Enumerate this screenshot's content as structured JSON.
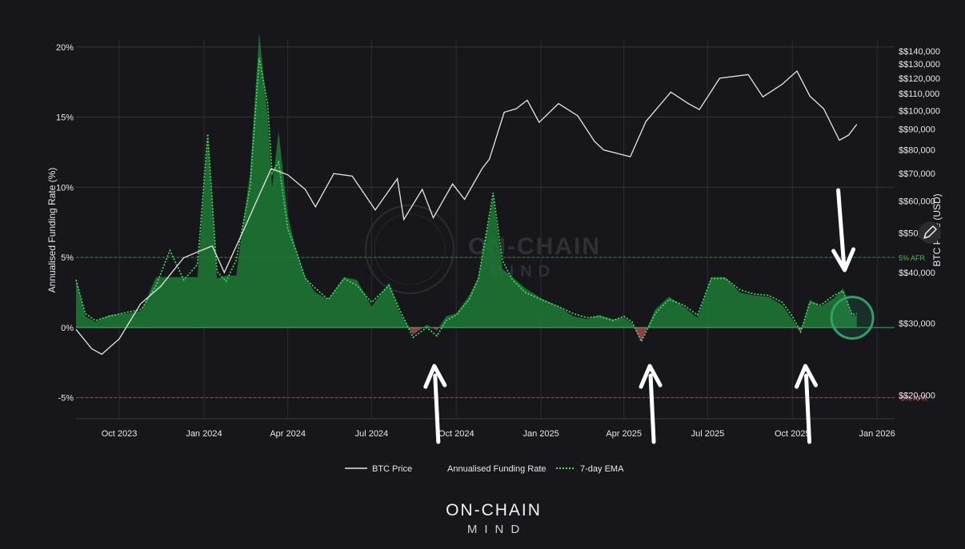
{
  "chart_data": {
    "type": "area",
    "ylabel_left": "Annualised Funding Rate (%)",
    "ylabel_right": "BTC Price (USD)",
    "x_ticks": [
      "Oct 2023",
      "Jan 2024",
      "Apr 2024",
      "Jul 2024",
      "Oct 2024",
      "Jan 2025",
      "Apr 2025",
      "Jul 2025",
      "Oct 2025",
      "Jan 2026"
    ],
    "xlim": [
      "2023-08-15",
      "2026-01-20"
    ],
    "ylim_left": [
      -6.5,
      20.5
    ],
    "left_ticks": [
      "-5%",
      "0%",
      "5%",
      "10%",
      "15%",
      "20%"
    ],
    "right_scale": "log",
    "ylim_right": [
      17500,
      149000
    ],
    "right_ticks": [
      "$$20,000",
      "$$30,000",
      "$$40,000",
      "$$50,000",
      "$$60,000",
      "$$70,000",
      "$$80,000",
      "$$90,000",
      "$$100,000",
      "$$110,000",
      "$$120,000",
      "$$130,000",
      "$$140,000"
    ],
    "reference_lines": [
      {
        "label": "5% AFR",
        "value": 5,
        "color": "#3fbf5f"
      },
      {
        "label": "-5% AFR",
        "value": -5,
        "color": "#e06070"
      }
    ],
    "grid": true,
    "legend_position": "bottom-center",
    "legend": [
      {
        "name": "BTC Price",
        "style": "solid",
        "color": "#e6e6e6"
      },
      {
        "name": "Annualised Funding Rate",
        "style": "area",
        "color": "#1d7a34"
      },
      {
        "name": "7-day EMA",
        "style": "dotted",
        "color": "#3fe56b"
      }
    ],
    "series": [
      {
        "name": "BTC Price",
        "axis": "right",
        "color": "#e6e6e6",
        "x": [
          "2023-08-15",
          "2023-09-01",
          "2023-09-12",
          "2023-10-01",
          "2023-10-24",
          "2023-11-15",
          "2023-12-10",
          "2024-01-10",
          "2024-01-23",
          "2024-02-15",
          "2024-03-01",
          "2024-03-14",
          "2024-04-01",
          "2024-04-20",
          "2024-05-01",
          "2024-05-21",
          "2024-06-10",
          "2024-07-05",
          "2024-07-29",
          "2024-08-05",
          "2024-08-25",
          "2024-09-06",
          "2024-09-27",
          "2024-10-10",
          "2024-10-29",
          "2024-11-06",
          "2024-11-22",
          "2024-12-05",
          "2024-12-17",
          "2024-12-30",
          "2025-01-20",
          "2025-02-10",
          "2025-02-28",
          "2025-03-10",
          "2025-04-08",
          "2025-04-25",
          "2025-05-22",
          "2025-06-10",
          "2025-06-22",
          "2025-07-14",
          "2025-08-14",
          "2025-08-30",
          "2025-09-20",
          "2025-10-06",
          "2025-10-20",
          "2025-11-04",
          "2025-11-21",
          "2025-12-01",
          "2025-12-10"
        ],
        "y": [
          29000,
          26000,
          25200,
          27500,
          33500,
          37000,
          43500,
          46500,
          40000,
          52000,
          62000,
          72000,
          69500,
          64000,
          58000,
          70000,
          69000,
          57000,
          68000,
          54000,
          64000,
          54500,
          66000,
          60500,
          72000,
          76000,
          99000,
          101000,
          106000,
          93500,
          104000,
          97000,
          84000,
          80000,
          77000,
          94000,
          111000,
          104000,
          100500,
          120000,
          122500,
          108000,
          116000,
          125000,
          108500,
          101000,
          84500,
          87000,
          92500
        ]
      },
      {
        "name": "Annualised Funding Rate",
        "axis": "left",
        "color": "#1d7a34",
        "x": [
          "2023-08-15",
          "2023-08-25",
          "2023-09-05",
          "2023-09-20",
          "2023-10-10",
          "2023-10-25",
          "2023-11-10",
          "2023-11-25",
          "2023-12-10",
          "2023-12-25",
          "2024-01-05",
          "2024-01-15",
          "2024-01-25",
          "2024-02-05",
          "2024-02-20",
          "2024-03-01",
          "2024-03-10",
          "2024-03-15",
          "2024-03-22",
          "2024-04-01",
          "2024-04-10",
          "2024-04-20",
          "2024-05-01",
          "2024-05-15",
          "2024-06-01",
          "2024-06-15",
          "2024-07-01",
          "2024-07-20",
          "2024-08-01",
          "2024-08-15",
          "2024-08-30",
          "2024-09-10",
          "2024-09-20",
          "2024-10-01",
          "2024-10-15",
          "2024-10-25",
          "2024-11-10",
          "2024-11-20",
          "2024-12-01",
          "2024-12-15",
          "2025-01-01",
          "2025-01-20",
          "2025-02-05",
          "2025-02-20",
          "2025-03-05",
          "2025-03-20",
          "2025-04-01",
          "2025-04-10",
          "2025-04-20",
          "2025-05-05",
          "2025-05-20",
          "2025-06-05",
          "2025-06-20",
          "2025-07-05",
          "2025-07-20",
          "2025-08-05",
          "2025-08-20",
          "2025-09-05",
          "2025-09-20",
          "2025-10-01",
          "2025-10-10",
          "2025-10-20",
          "2025-11-01",
          "2025-11-15",
          "2025-11-25",
          "2025-12-05",
          "2025-12-10"
        ],
        "y": [
          3.5,
          0.8,
          0.4,
          0.9,
          1.0,
          1.2,
          3.6,
          3.6,
          3.6,
          3.6,
          13.5,
          3.5,
          3.7,
          3.7,
          11.0,
          21.0,
          15.0,
          10.0,
          14.0,
          8.0,
          5.5,
          3.6,
          2.5,
          2.0,
          3.6,
          3.4,
          1.5,
          3.2,
          1.0,
          -0.5,
          0.2,
          -0.2,
          0.8,
          1.0,
          2.3,
          3.6,
          9.3,
          4.2,
          3.6,
          2.8,
          2.1,
          1.5,
          0.8,
          0.6,
          0.9,
          0.6,
          0.7,
          0.3,
          -1.0,
          1.3,
          2.2,
          1.5,
          0.7,
          3.6,
          3.6,
          2.5,
          2.3,
          2.2,
          1.6,
          0.6,
          -0.4,
          2.0,
          1.5,
          2.1,
          2.8,
          0.8,
          0.9
        ]
      },
      {
        "name": "7-day EMA",
        "axis": "left",
        "color": "#3fe56b",
        "x": [
          "2023-08-15",
          "2023-08-25",
          "2023-09-05",
          "2023-09-20",
          "2023-10-10",
          "2023-10-25",
          "2023-11-10",
          "2023-11-25",
          "2023-12-10",
          "2023-12-25",
          "2024-01-05",
          "2024-01-15",
          "2024-01-25",
          "2024-02-05",
          "2024-02-20",
          "2024-03-01",
          "2024-03-10",
          "2024-03-15",
          "2024-03-22",
          "2024-04-01",
          "2024-04-10",
          "2024-04-20",
          "2024-05-01",
          "2024-05-15",
          "2024-06-01",
          "2024-06-15",
          "2024-07-01",
          "2024-07-20",
          "2024-08-01",
          "2024-08-15",
          "2024-08-30",
          "2024-09-10",
          "2024-09-20",
          "2024-10-01",
          "2024-10-15",
          "2024-10-25",
          "2024-11-10",
          "2024-11-20",
          "2024-12-01",
          "2024-12-15",
          "2025-01-01",
          "2025-01-20",
          "2025-02-05",
          "2025-02-20",
          "2025-03-05",
          "2025-03-20",
          "2025-04-01",
          "2025-04-10",
          "2025-04-20",
          "2025-05-05",
          "2025-05-20",
          "2025-06-05",
          "2025-06-20",
          "2025-07-05",
          "2025-07-20",
          "2025-08-05",
          "2025-08-20",
          "2025-09-05",
          "2025-09-20",
          "2025-10-01",
          "2025-10-10",
          "2025-10-20",
          "2025-11-01",
          "2025-11-15",
          "2025-11-25",
          "2025-12-05",
          "2025-12-10"
        ],
        "y": [
          3.4,
          1.0,
          0.5,
          0.8,
          1.1,
          1.3,
          3.0,
          5.5,
          3.4,
          4.5,
          13.8,
          4.0,
          3.3,
          4.8,
          10.0,
          19.2,
          16.0,
          11.0,
          11.8,
          7.0,
          5.5,
          3.5,
          2.8,
          2.0,
          3.5,
          3.0,
          1.8,
          3.0,
          1.2,
          -0.7,
          0.0,
          -0.6,
          0.5,
          0.9,
          2.0,
          3.5,
          9.6,
          4.8,
          3.4,
          2.5,
          2.0,
          1.5,
          1.0,
          0.7,
          0.8,
          0.5,
          0.8,
          0.4,
          -1.0,
          1.0,
          2.0,
          1.6,
          0.9,
          3.5,
          3.5,
          2.7,
          2.4,
          2.3,
          1.8,
          0.8,
          -0.3,
          1.8,
          1.6,
          2.3,
          2.6,
          0.9,
          1.0
        ]
      }
    ]
  },
  "watermark": {
    "main": "ON-CHAIN",
    "sub": "MIND"
  },
  "branding": {
    "main": "ON-CHAIN",
    "sub": "MIND"
  },
  "colors": {
    "background": "#17171b",
    "funding_fill": "#1d7a34",
    "ema": "#3fe56b",
    "negative": "#c24a5a",
    "price": "#e6e6e6",
    "arrow": "#ffffff",
    "highlight_circle": "#2fa06a"
  },
  "annotations": {
    "arrows": [
      {
        "date": "2024-09-08",
        "direction": "up"
      },
      {
        "date": "2025-04-30",
        "direction": "up"
      },
      {
        "date": "2025-10-16",
        "direction": "up"
      },
      {
        "date": "2025-11-25",
        "direction": "down"
      }
    ],
    "highlight_circle": {
      "date": "2025-12-05",
      "level": 0.7
    }
  }
}
